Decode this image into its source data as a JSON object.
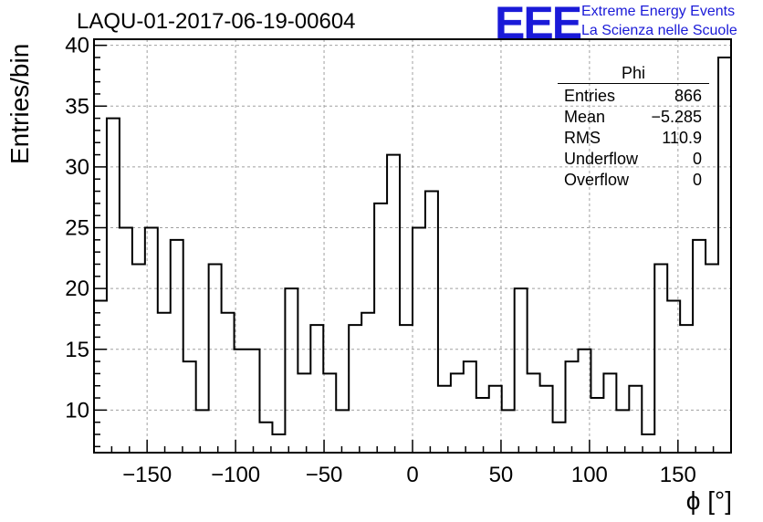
{
  "title": "LAQU-01-2017-06-19-00604",
  "logo": {
    "mark": "EEE",
    "line1": "Extreme Energy Events",
    "line2": "La Scienza nelle Scuole",
    "color": "#1a1ad8"
  },
  "stats": {
    "title": "Phi",
    "rows": [
      {
        "label": "Entries",
        "value": "866"
      },
      {
        "label": "Mean",
        "value": "−5.285"
      },
      {
        "label": "RMS",
        "value": "110.9"
      },
      {
        "label": "Underflow",
        "value": "0"
      },
      {
        "label": "Overflow",
        "value": "0"
      }
    ]
  },
  "chart_data": {
    "type": "bar",
    "style": "step-histogram",
    "xlabel": "ϕ [°]",
    "ylabel": "Entries/bin",
    "xlim": [
      -180,
      180
    ],
    "ylim": [
      6.5,
      40.5
    ],
    "bin_width": 7.2,
    "bin_edges_start": -180,
    "values": [
      19,
      34,
      25,
      22,
      25,
      18,
      24,
      14,
      10,
      22,
      18,
      15,
      15,
      9,
      8,
      20,
      13,
      17,
      13,
      10,
      17,
      18,
      27,
      31,
      17,
      25,
      28,
      12,
      13,
      14,
      11,
      12,
      10,
      20,
      13,
      12,
      9,
      14,
      15,
      11,
      13,
      10,
      12,
      8,
      22,
      19,
      17,
      24,
      22,
      39
    ],
    "x_ticks": [
      -150,
      -100,
      -50,
      0,
      50,
      100,
      150
    ],
    "x_tick_labels": [
      "−150",
      "−100",
      "−50",
      "0",
      "50",
      "100",
      "150"
    ],
    "y_ticks": [
      10,
      15,
      20,
      25,
      30,
      35,
      40
    ],
    "y_tick_labels": [
      "10",
      "15",
      "20",
      "25",
      "30",
      "35",
      "40"
    ],
    "grid": true,
    "line_color": "#000000",
    "grid_color": "#a0a0a0"
  }
}
